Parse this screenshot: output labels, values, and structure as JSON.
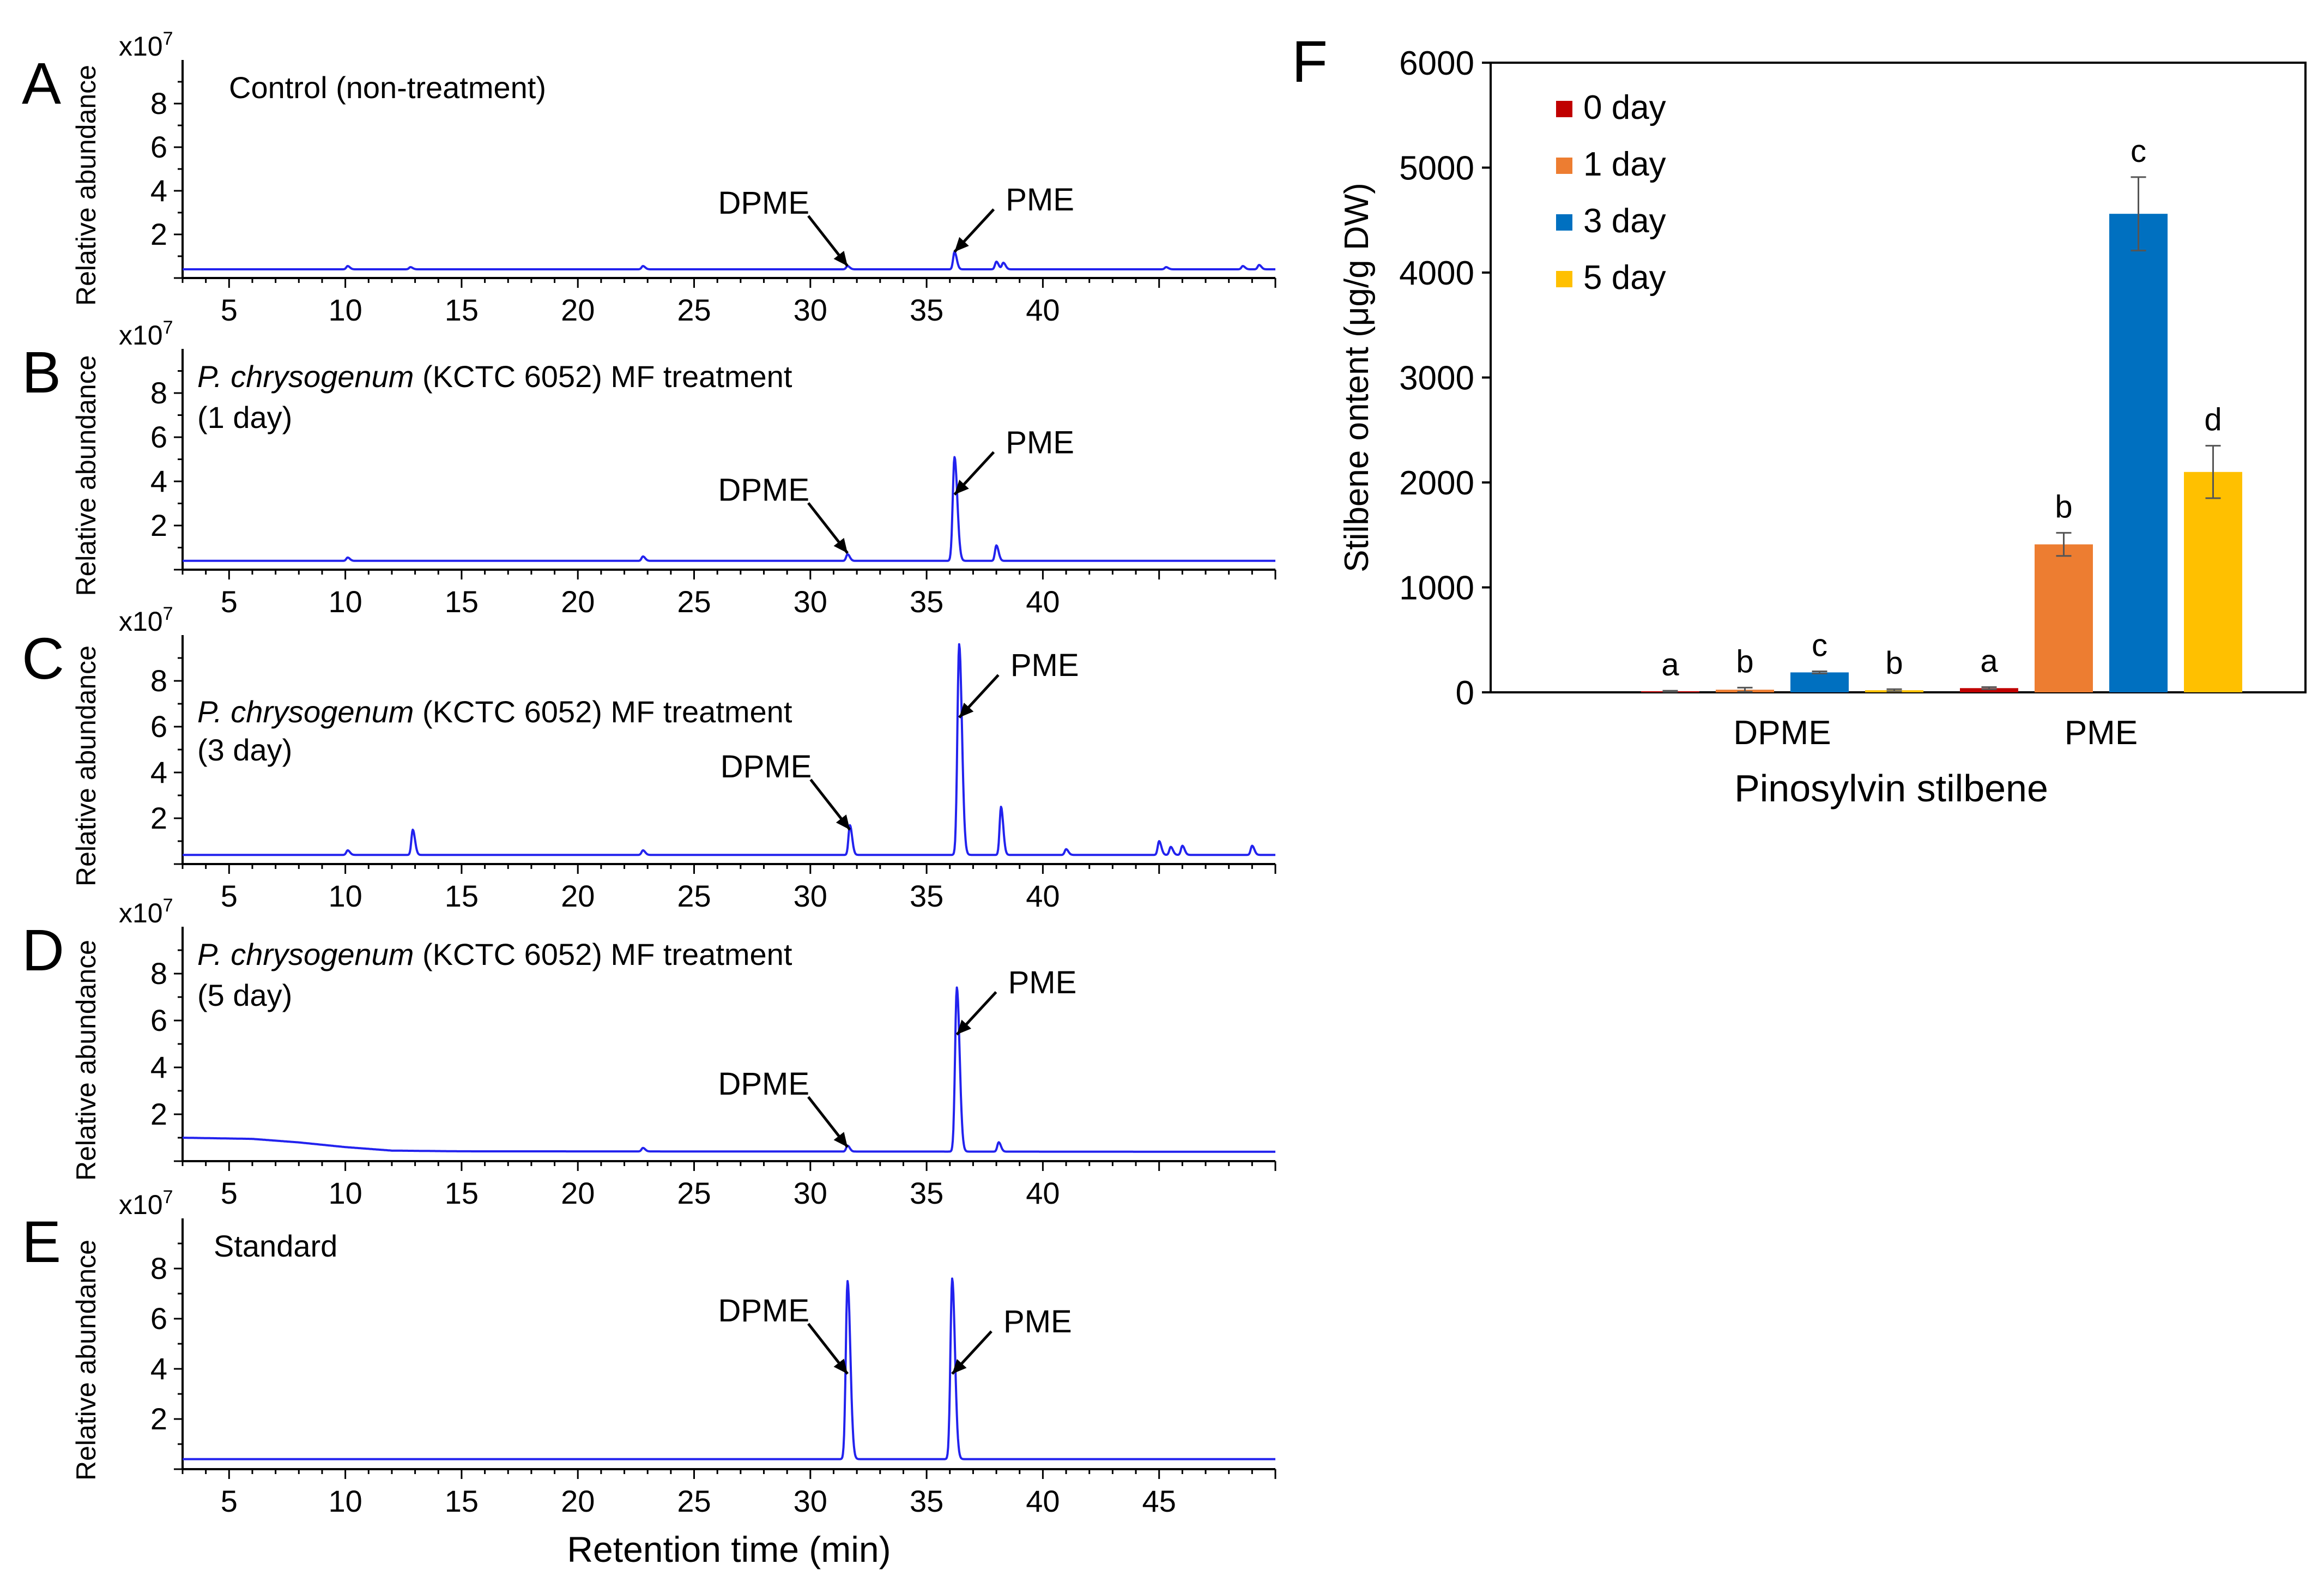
{
  "chart_data": [
    {
      "type": "line",
      "panel_letter": "A",
      "title": "Control (non-treatment)",
      "title_italic": "",
      "title_line2": "",
      "ylabel": "Relative abundance",
      "y_exponent_prefix": "x10",
      "y_exponent": "7",
      "yticks": [
        2,
        4,
        6,
        8
      ],
      "xticks": [
        5,
        10,
        15,
        20,
        25,
        30,
        35,
        40
      ],
      "xlabel": "",
      "xlim": [
        3,
        50
      ],
      "ylim": [
        0,
        10
      ],
      "baseline": 0.4,
      "peaks": [
        [
          10.1,
          0.15
        ],
        [
          12.8,
          0.1
        ],
        [
          22.8,
          0.15
        ],
        [
          31.6,
          0.15
        ],
        [
          36.2,
          0.8
        ],
        [
          38.0,
          0.35
        ],
        [
          38.3,
          0.3
        ],
        [
          45.3,
          0.1
        ],
        [
          48.6,
          0.15
        ],
        [
          49.3,
          0.2
        ]
      ],
      "drift": [],
      "annotations": [
        {
          "label": "DPME",
          "x": 31.6,
          "y": 0.55
        },
        {
          "label": "PME",
          "x": 36.2,
          "y": 1.2
        }
      ]
    },
    {
      "type": "line",
      "panel_letter": "B",
      "title": " (KCTC 6052) MF treatment",
      "title_italic": "P. chrysogenum",
      "title_line2": "(1 day)",
      "ylabel": "Relative abundance",
      "y_exponent_prefix": "x10",
      "y_exponent": "7",
      "yticks": [
        2,
        4,
        6,
        8
      ],
      "xticks": [
        5,
        10,
        15,
        20,
        25,
        30,
        35,
        40
      ],
      "xlabel": "",
      "xlim": [
        3,
        50
      ],
      "ylim": [
        0,
        10
      ],
      "baseline": 0.4,
      "peaks": [
        [
          10.1,
          0.15
        ],
        [
          22.8,
          0.2
        ],
        [
          31.6,
          0.3
        ],
        [
          36.2,
          4.7
        ],
        [
          38.0,
          0.7
        ]
      ],
      "drift": [],
      "annotations": [
        {
          "label": "DPME",
          "x": 31.6,
          "y": 0.75
        },
        {
          "label": "PME",
          "x": 36.2,
          "y": 3.4
        }
      ]
    },
    {
      "type": "line",
      "panel_letter": "C",
      "title": " (KCTC 6052) MF treatment",
      "title_italic": "P. chrysogenum",
      "title_line2": " (3 day)",
      "ylabel": "Relative abundance",
      "y_exponent_prefix": "x10",
      "y_exponent": "7",
      "yticks": [
        2,
        4,
        6,
        8
      ],
      "xticks": [
        5,
        10,
        15,
        20,
        25,
        30,
        35,
        40
      ],
      "xlabel": "",
      "xlim": [
        3,
        50
      ],
      "ylim": [
        0,
        10
      ],
      "baseline": 0.4,
      "peaks": [
        [
          10.1,
          0.2
        ],
        [
          12.9,
          1.1
        ],
        [
          22.8,
          0.2
        ],
        [
          31.7,
          1.3
        ],
        [
          36.4,
          9.2
        ],
        [
          38.2,
          2.1
        ],
        [
          41.0,
          0.25
        ],
        [
          45.0,
          0.6
        ],
        [
          45.5,
          0.35
        ],
        [
          46.0,
          0.4
        ],
        [
          49.0,
          0.4
        ]
      ],
      "drift": [],
      "annotations": [
        {
          "label": "DPME",
          "x": 31.7,
          "y": 1.5
        },
        {
          "label": "PME",
          "x": 36.4,
          "y": 6.4
        }
      ]
    },
    {
      "type": "line",
      "panel_letter": "D",
      "title": " (KCTC 6052) MF treatment",
      "title_italic": "P. chrysogenum",
      "title_line2": "(5 day)",
      "ylabel": "Relative abundance",
      "y_exponent_prefix": "x10",
      "y_exponent": "7",
      "yticks": [
        2,
        4,
        6,
        8
      ],
      "xticks": [
        5,
        10,
        15,
        20,
        25,
        30,
        35,
        40
      ],
      "xlabel": "",
      "xlim": [
        3,
        50
      ],
      "ylim": [
        0,
        10
      ],
      "baseline": 0.4,
      "peaks": [
        [
          22.8,
          0.15
        ],
        [
          31.6,
          0.25
        ],
        [
          36.3,
          7.0
        ],
        [
          38.1,
          0.4
        ]
      ],
      "drift": [
        [
          3,
          1.0
        ],
        [
          6,
          0.95
        ],
        [
          8,
          0.8
        ],
        [
          10,
          0.6
        ],
        [
          12,
          0.45
        ],
        [
          15,
          0.42
        ],
        [
          50,
          0.4
        ]
      ],
      "annotations": [
        {
          "label": "DPME",
          "x": 31.6,
          "y": 0.6
        },
        {
          "label": "PME",
          "x": 36.3,
          "y": 5.4
        }
      ]
    },
    {
      "type": "line",
      "panel_letter": "E",
      "title": "Standard",
      "title_italic": "",
      "title_line2": "",
      "ylabel": "Relative abundance",
      "y_exponent_prefix": "x10",
      "y_exponent": "7",
      "yticks": [
        2,
        4,
        6,
        8
      ],
      "xticks": [
        5,
        10,
        15,
        20,
        25,
        30,
        35,
        40,
        45
      ],
      "xlabel": "Retention time (min)",
      "xlim": [
        3,
        50
      ],
      "ylim": [
        0,
        10
      ],
      "baseline": 0.4,
      "peaks": [
        [
          31.6,
          7.1
        ],
        [
          36.1,
          7.2
        ]
      ],
      "drift": [],
      "annotations": [
        {
          "label": "DPME",
          "x": 31.6,
          "y": 3.8
        },
        {
          "label": "PME",
          "x": 36.1,
          "y": 3.8
        }
      ]
    },
    {
      "type": "bar",
      "panel_letter": "F",
      "title": "",
      "categories": [
        "DPME",
        "PME"
      ],
      "series": [
        {
          "name": "0  day",
          "color": "#c00000",
          "values": [
            10,
            40
          ],
          "errors": [
            5,
            10
          ],
          "letters": [
            "a",
            "a"
          ]
        },
        {
          "name": "1 day",
          "color": "#ed7d31",
          "values": [
            25,
            1410
          ],
          "errors": [
            20,
            110
          ],
          "letters": [
            "b",
            "b"
          ]
        },
        {
          "name": "3 day",
          "color": "#0070c0",
          "values": [
            190,
            4560
          ],
          "errors": [
            10,
            350
          ],
          "letters": [
            "c",
            "c"
          ]
        },
        {
          "name": "5 day",
          "color": "#ffc000",
          "values": [
            20,
            2100
          ],
          "errors": [
            10,
            250
          ],
          "letters": [
            "b",
            "d"
          ]
        }
      ],
      "xlabel": "Pinosylvin stilbene",
      "ylabel": "Stilbene ontent (μg/g DW)",
      "ylim": [
        0,
        6000
      ],
      "yticks": [
        0,
        1000,
        2000,
        3000,
        4000,
        5000,
        6000
      ],
      "legend_position": "top-left"
    }
  ]
}
